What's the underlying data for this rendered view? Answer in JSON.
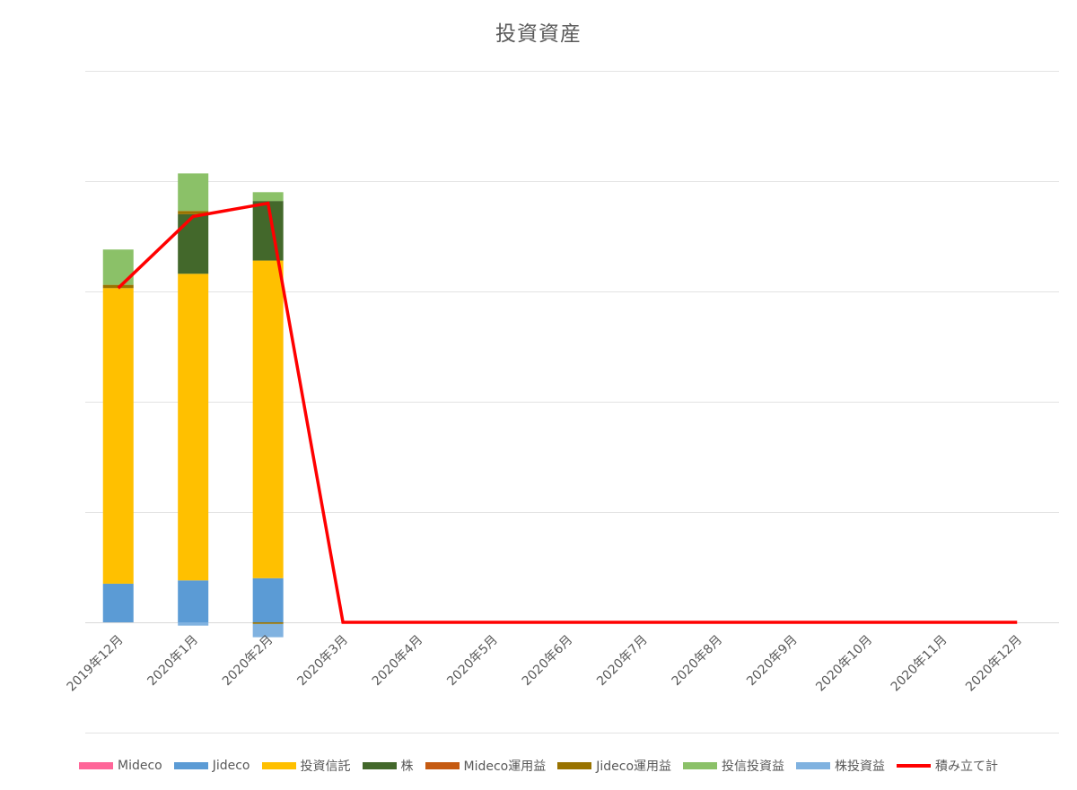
{
  "chart_data": {
    "type": "bar",
    "title": "投資資産",
    "stacked": true,
    "categories": [
      "2019年12月",
      "2020年1月",
      "2020年2月",
      "2020年3月",
      "2020年4月",
      "2020年5月",
      "2020年6月",
      "2020年7月",
      "2020年8月",
      "2020年9月",
      "2020年10月",
      "2020年11月",
      "2020年12月"
    ],
    "series": [
      {
        "name": "Mideco",
        "type": "bar",
        "color": "#ff6699",
        "values": [
          0,
          0,
          0,
          0,
          0,
          0,
          0,
          0,
          0,
          0,
          0,
          0,
          0
        ]
      },
      {
        "name": "Jideco",
        "type": "bar",
        "color": "#5b9bd5",
        "values": [
          35,
          38,
          40,
          0,
          0,
          0,
          0,
          0,
          0,
          0,
          0,
          0,
          0
        ]
      },
      {
        "name": "投資信託",
        "type": "bar",
        "color": "#ffc000",
        "values": [
          268,
          278,
          288,
          0,
          0,
          0,
          0,
          0,
          0,
          0,
          0,
          0,
          0
        ]
      },
      {
        "name": "株",
        "type": "bar",
        "color": "#43682b",
        "values": [
          0,
          54,
          54,
          0,
          0,
          0,
          0,
          0,
          0,
          0,
          0,
          0,
          0
        ]
      },
      {
        "name": "Mideco運用益",
        "type": "bar",
        "color": "#c55a11",
        "values": [
          0,
          0,
          0,
          0,
          0,
          0,
          0,
          0,
          0,
          0,
          0,
          0,
          0
        ]
      },
      {
        "name": "Jideco運用益",
        "type": "bar",
        "color": "#997300",
        "values": [
          3,
          3,
          -1.5,
          0,
          0,
          0,
          0,
          0,
          0,
          0,
          0,
          0,
          0
        ]
      },
      {
        "name": "投信投資益",
        "type": "bar",
        "color": "#8bc168",
        "values": [
          32,
          34,
          8,
          0,
          0,
          0,
          0,
          0,
          0,
          0,
          0,
          0,
          0
        ]
      },
      {
        "name": "株投資益",
        "type": "bar",
        "color": "#80b2e0",
        "values": [
          0,
          -3,
          -12,
          0,
          0,
          0,
          0,
          0,
          0,
          0,
          0,
          0,
          0
        ]
      },
      {
        "name": "積み立て計",
        "type": "line",
        "color": "#ff0000",
        "values": [
          303,
          368,
          380,
          0,
          0,
          0,
          0,
          0,
          0,
          0,
          0,
          0,
          0
        ]
      }
    ],
    "ylim": [
      -40,
      500
    ],
    "gridlines": [
      0,
      100,
      200,
      300,
      400,
      500
    ],
    "y_tick_labels_visible": false,
    "grid": true,
    "legend_position": "bottom"
  }
}
